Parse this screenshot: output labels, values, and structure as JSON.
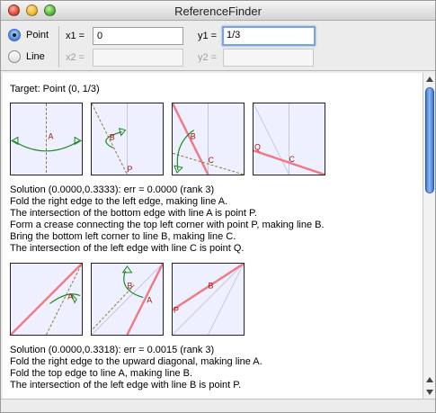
{
  "window": {
    "title": "ReferenceFinder"
  },
  "mode": {
    "point_label": "Point",
    "line_label": "Line",
    "selected": "Point"
  },
  "inputs": {
    "x1_label": "x1 =",
    "x1_value": "0",
    "y1_label": "y1 =",
    "y1_value": "1/3",
    "x2_label": "x2 =",
    "x2_value": "",
    "y2_label": "y2 =",
    "y2_value": ""
  },
  "results": {
    "target": "Target: Point (0, 1/3)",
    "solutions": [
      {
        "diagram_labels": [
          [
            "A"
          ],
          [
            "B",
            "P"
          ],
          [
            "B",
            "C"
          ],
          [
            "Q",
            "C"
          ]
        ],
        "steps": [
          "Solution (0.0000,0.3333): err = 0.0000 (rank 3)",
          "Fold the right edge to the left edge, making line A.",
          "The intersection of the bottom edge with line A is point P.",
          "Form a crease connecting the top left corner with point P, making line B.",
          "Bring the bottom left corner to line B, making line C.",
          "The intersection of the left edge with line C is point Q."
        ]
      },
      {
        "diagram_labels": [
          [
            "A"
          ],
          [
            "B",
            "A"
          ],
          [
            "B",
            "P"
          ]
        ],
        "steps": [
          "Solution (0.0000,0.3318): err = 0.0015 (rank 3)",
          "Fold the right edge to the upward diagonal, making line A.",
          "Fold the top edge to line A, making line B.",
          "The intersection of the left edge with line B is point P."
        ]
      }
    ]
  },
  "colors": {
    "paper": "#eef0ff",
    "crease_red": "#f07a84",
    "fold_dashed": "#8a7a3a",
    "arrow_green": "#1a8a1a",
    "label_red": "#a01818",
    "scroll_blue": "#3d76d8"
  }
}
